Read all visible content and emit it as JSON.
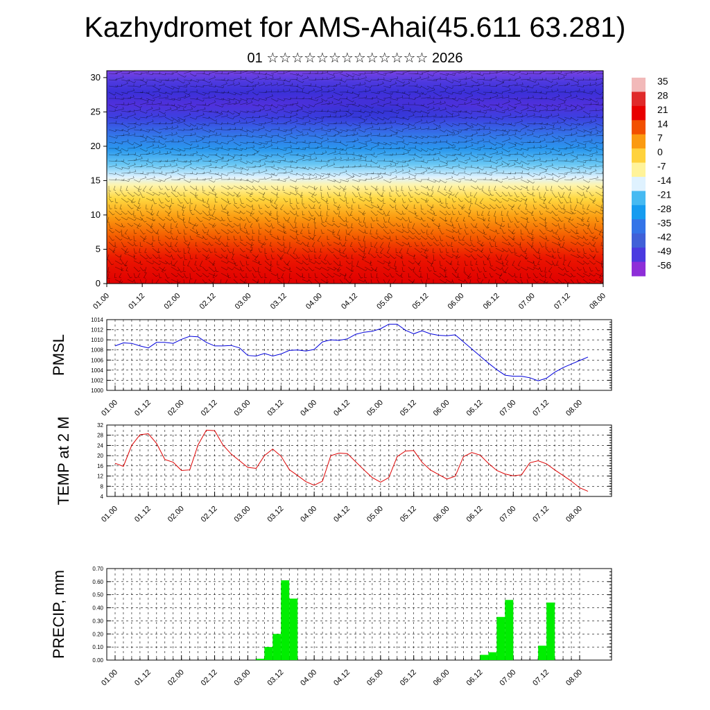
{
  "header": {
    "title": "Kazhydromet for AMS-Ahai(45.611 63.281)",
    "subtitle": "01 ☆☆☆☆☆☆☆☆☆☆☆☆☆ 2026"
  },
  "colors": {
    "pmsl_line": "#0000dd",
    "temp_line": "#dd0000",
    "precip_bar": "#00ee00",
    "grid": "#000000"
  },
  "chart_data": [
    {
      "type": "heatmap",
      "title": "",
      "description_units": "temperature by model level with wind barbs",
      "x_ticks": [
        "01.00",
        "01.12",
        "02.00",
        "02.12",
        "03.00",
        "03.12",
        "04.00",
        "04.12",
        "05.00",
        "05.12",
        "06.00",
        "06.12",
        "07.00",
        "07.12",
        "08.00"
      ],
      "y_ticks": [
        "0",
        "5",
        "10",
        "15",
        "20",
        "25",
        "30"
      ],
      "ylim": [
        0,
        31
      ],
      "colorbar_labels": [
        "35",
        "28",
        "21",
        "14",
        "7",
        "0",
        "-7",
        "-14",
        "-21",
        "-28",
        "-35",
        "-42",
        "-49",
        "-56"
      ],
      "colorbar_colors": [
        "#f2b9b9",
        "#e02a2a",
        "#e80000",
        "#f25000",
        "#fb9a10",
        "#ffd23c",
        "#fff39a",
        "#dff2ff",
        "#46baf2",
        "#169cf0",
        "#3474e8",
        "#4060d8",
        "#4a3ae0",
        "#8e2ed8"
      ]
    },
    {
      "type": "line",
      "ylabel": "PMSL",
      "ylim": [
        1000,
        1014
      ],
      "y_ticks": [
        "1000",
        "1002",
        "1004",
        "1006",
        "1008",
        "1010",
        "1012",
        "1014"
      ],
      "x_ticks": [
        "01.00",
        "01.12",
        "02.00",
        "02.12",
        "03.00",
        "03.12",
        "04.00",
        "04.12",
        "05.00",
        "05.12",
        "06.00",
        "06.12",
        "07.00",
        "07.12",
        "08.00"
      ],
      "series": [
        {
          "name": "PMSL",
          "values": [
            1008.8,
            1009.4,
            1009.3,
            1008.8,
            1008.4,
            1009.5,
            1009.5,
            1009.3,
            1010.1,
            1010.7,
            1010.6,
            1009.5,
            1008.8,
            1008.8,
            1008.9,
            1008.4,
            1006.9,
            1006.8,
            1007.3,
            1006.8,
            1007.2,
            1007.9,
            1008.0,
            1007.8,
            1008.1,
            1009.6,
            1010.0,
            1009.9,
            1010.2,
            1011.1,
            1011.5,
            1011.7,
            1012.2,
            1013.1,
            1013.1,
            1011.9,
            1011.2,
            1011.8,
            1011.2,
            1010.9,
            1010.8,
            1011.0,
            1009.6,
            1008.2,
            1006.8,
            1005.4,
            1004.1,
            1003.0,
            1002.8,
            1002.8,
            1002.5,
            1001.9,
            1002.4,
            1003.6,
            1004.5,
            1005.2,
            1005.9,
            1006.6
          ]
        }
      ]
    },
    {
      "type": "line",
      "ylabel": "TEMP at 2 M",
      "ylim": [
        4,
        32
      ],
      "y_ticks": [
        "4",
        "8",
        "12",
        "16",
        "20",
        "24",
        "28",
        "32"
      ],
      "x_ticks": [
        "01.00",
        "01.12",
        "02.00",
        "02.12",
        "03.00",
        "03.12",
        "04.00",
        "04.12",
        "05.00",
        "05.12",
        "06.00",
        "06.12",
        "07.00",
        "07.12",
        "08.00"
      ],
      "series": [
        {
          "name": "TEMP at 2 M",
          "values": [
            17.0,
            15.8,
            24.0,
            28.2,
            28.6,
            24.8,
            18.5,
            17.4,
            14.2,
            14.4,
            24.2,
            30.0,
            29.8,
            24.2,
            20.6,
            18.0,
            15.4,
            15.0,
            20.0,
            22.6,
            19.8,
            14.5,
            12.2,
            9.8,
            8.4,
            10.0,
            20.0,
            21.0,
            20.8,
            17.6,
            14.4,
            11.4,
            9.6,
            11.4,
            19.6,
            21.8,
            22.0,
            17.4,
            14.4,
            12.6,
            10.8,
            11.9,
            19.6,
            21.2,
            20.2,
            17.0,
            14.2,
            12.8,
            12.1,
            12.5,
            17.2,
            18.0,
            16.8,
            14.4,
            12.2,
            10.0,
            7.4,
            6.0
          ]
        }
      ]
    },
    {
      "type": "bar",
      "ylabel": "PRECIP, mm",
      "ylim": [
        0,
        0.7
      ],
      "y_ticks": [
        "0.00",
        "0.10",
        "0.20",
        "0.30",
        "0.40",
        "0.50",
        "0.60",
        "0.70"
      ],
      "x_ticks": [
        "01.00",
        "01.12",
        "02.00",
        "02.12",
        "03.00",
        "03.12",
        "04.00",
        "04.12",
        "05.00",
        "05.12",
        "06.00",
        "06.12",
        "07.00",
        "07.12",
        "08.00"
      ],
      "bar_step_hours": 3,
      "bars": [
        {
          "start": 17,
          "value": 0.01
        },
        {
          "start": 18,
          "value": 0.1
        },
        {
          "start": 19,
          "value": 0.2
        },
        {
          "start": 20,
          "value": 0.61
        },
        {
          "start": 21,
          "value": 0.47
        },
        {
          "start": 44,
          "value": 0.04
        },
        {
          "start": 45,
          "value": 0.06
        },
        {
          "start": 46,
          "value": 0.33
        },
        {
          "start": 47,
          "value": 0.46
        },
        {
          "start": 51,
          "value": 0.11
        },
        {
          "start": 52,
          "value": 0.44
        }
      ]
    }
  ]
}
